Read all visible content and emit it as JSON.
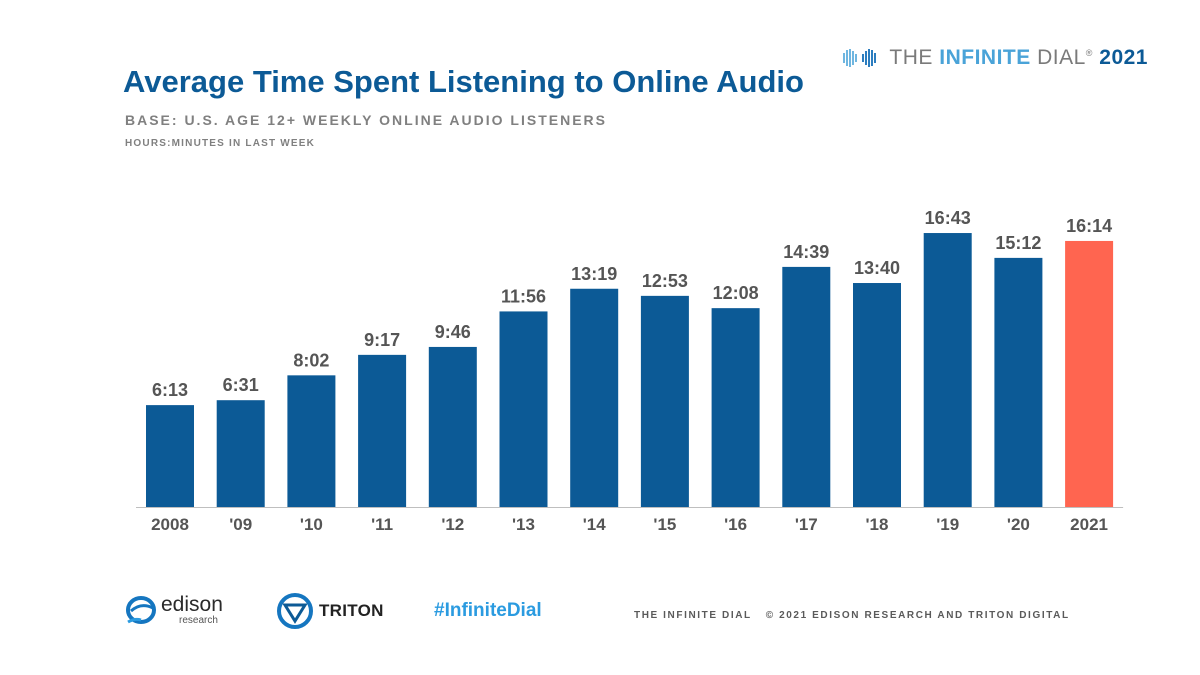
{
  "brand": {
    "prefix": "THE ",
    "infinite": "INFINITE",
    "dial": " DIAL",
    "year": " 2021",
    "registered": "®"
  },
  "header": {
    "title": "Average Time Spent Listening to Online Audio",
    "subtitle": "BASE: U.S. AGE 12+ WEEKLY ONLINE AUDIO LISTENERS",
    "unit": "HOURS:MINUTES IN LAST WEEK"
  },
  "chart_data": {
    "type": "bar",
    "title": "Average Time Spent Listening to Online Audio",
    "subtitle": "BASE: U.S. AGE 12+ WEEKLY ONLINE AUDIO LISTENERS",
    "ylabel": "HOURS:MINUTES IN LAST WEEK",
    "categories": [
      "2008",
      "'09",
      "'10",
      "'11",
      "'12",
      "'13",
      "'14",
      "'15",
      "'16",
      "'17",
      "'18",
      "'19",
      "'20",
      "2021"
    ],
    "series": [
      {
        "values_minutes": [
          373,
          391,
          482,
          557,
          586,
          716,
          799,
          773,
          728,
          879,
          820,
          1003,
          912,
          974
        ],
        "labels": [
          "6:13",
          "6:31",
          "8:02",
          "9:17",
          "9:46",
          "11:56",
          "13:19",
          "12:53",
          "12:08",
          "14:39",
          "13:40",
          "16:43",
          "15:12",
          "16:14"
        ]
      }
    ],
    "ylim_minutes": [
      0,
      1080
    ],
    "grid": false,
    "legend": "none",
    "colors": {
      "bar": "#0c5a96",
      "highlight": "#ff6550",
      "label": "#555555",
      "axis": "#bfbfbf"
    },
    "highlight_index": 13
  },
  "footer": {
    "edison_main": "edison",
    "edison_sub": "research",
    "triton": "TRITON",
    "hashtag": "#InfiniteDial",
    "left_note": "THE INFINITE DIAL",
    "right_note": "© 2021 EDISON RESEARCH AND TRITON DIGITAL"
  }
}
